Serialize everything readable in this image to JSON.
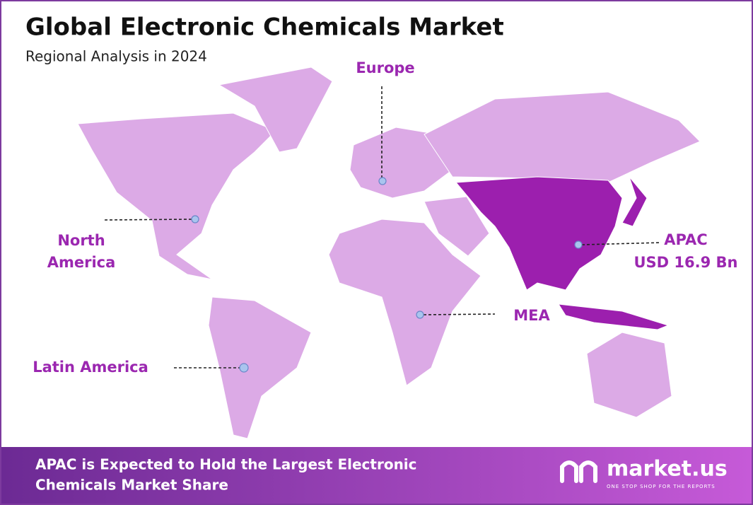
{
  "header": {
    "title": "Global Electronic Chemicals Market",
    "subtitle": "Regional Analysis in 2024"
  },
  "regions": [
    {
      "label": "Europe"
    },
    {
      "label": "North America"
    },
    {
      "label": "APAC",
      "value": "USD 16.9 Bn"
    },
    {
      "label": "MEA"
    },
    {
      "label": "Latin America"
    }
  ],
  "footer": {
    "headline": [
      "APAC is Expected to Hold the Largest Electronic",
      "Chemicals Market Share"
    ],
    "brand": "market.us",
    "tagline": "ONE STOP SHOP FOR THE REPORTS"
  }
}
